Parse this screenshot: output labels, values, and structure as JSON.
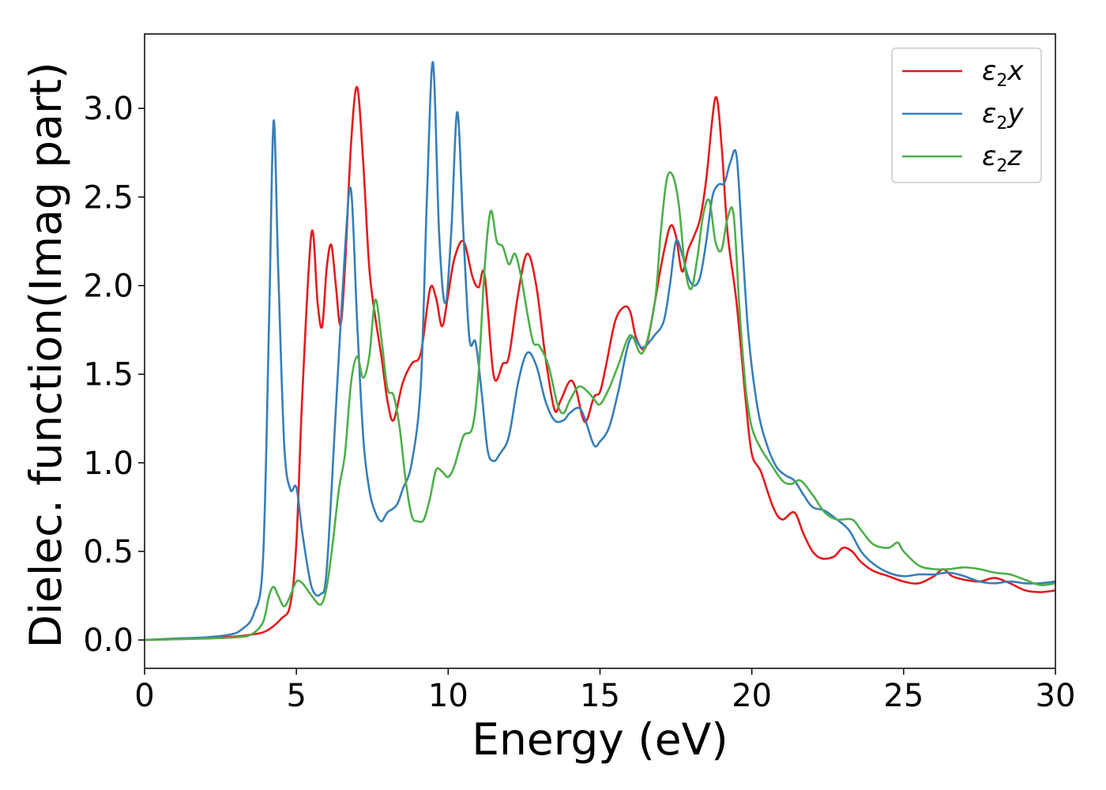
{
  "chart_data": {
    "type": "line",
    "xlabel": "Energy (eV)",
    "ylabel": "Dielec. function(Imag part)",
    "xlim": [
      0,
      30
    ],
    "ylim": [
      -0.16,
      3.42
    ],
    "xticks": [
      0,
      5,
      10,
      15,
      20,
      25,
      30
    ],
    "xtick_labels": [
      "0",
      "5",
      "10",
      "15",
      "20",
      "25",
      "30"
    ],
    "yticks": [
      0.0,
      0.5,
      1.0,
      1.5,
      2.0,
      2.5,
      3.0
    ],
    "ytick_labels": [
      "0.0",
      "0.5",
      "1.0",
      "1.5",
      "2.0",
      "2.5",
      "3.0"
    ],
    "grid": false,
    "legend_position": "top-right",
    "series": [
      {
        "name": "ε2x",
        "legend": {
          "symbol": "ε",
          "sub": "2",
          "suffix": "x"
        },
        "color": "#e41a1c",
        "x": [
          0,
          1,
          2,
          3,
          3.5,
          4.0,
          4.5,
          4.8,
          5.0,
          5.2,
          5.5,
          5.7,
          5.85,
          6.0,
          6.15,
          6.3,
          6.45,
          6.6,
          6.8,
          7.0,
          7.2,
          7.4,
          7.6,
          7.8,
          8.0,
          8.2,
          8.5,
          8.8,
          9.1,
          9.4,
          9.6,
          9.8,
          10.0,
          10.2,
          10.5,
          10.8,
          11.0,
          11.2,
          11.5,
          11.8,
          12.0,
          12.3,
          12.6,
          12.9,
          13.2,
          13.5,
          13.7,
          14.0,
          14.2,
          14.5,
          14.8,
          15.0,
          15.2,
          15.5,
          15.8,
          16.0,
          16.2,
          16.5,
          16.8,
          17.0,
          17.3,
          17.5,
          17.7,
          17.9,
          18.1,
          18.3,
          18.5,
          18.8,
          19.0,
          19.2,
          19.5,
          19.8,
          20.0,
          20.3,
          20.7,
          21.0,
          21.4,
          21.7,
          22.0,
          22.3,
          22.7,
          23.0,
          23.3,
          23.6,
          24.0,
          24.5,
          25.0,
          25.5,
          26.0,
          26.3,
          26.6,
          27.0,
          27.5,
          28.0,
          28.5,
          29.0,
          29.5,
          30.0
        ],
        "y": [
          0.0,
          0.005,
          0.01,
          0.02,
          0.03,
          0.05,
          0.12,
          0.2,
          0.55,
          1.4,
          2.3,
          1.9,
          1.77,
          2.1,
          2.23,
          2.0,
          1.78,
          2.1,
          2.8,
          3.12,
          2.7,
          2.1,
          1.82,
          1.6,
          1.35,
          1.24,
          1.45,
          1.56,
          1.62,
          1.98,
          1.93,
          1.77,
          1.95,
          2.15,
          2.25,
          2.05,
          1.99,
          2.06,
          1.49,
          1.56,
          1.6,
          1.95,
          2.18,
          2.0,
          1.6,
          1.3,
          1.35,
          1.46,
          1.42,
          1.23,
          1.37,
          1.4,
          1.55,
          1.8,
          1.88,
          1.85,
          1.7,
          1.65,
          1.9,
          2.1,
          2.33,
          2.28,
          2.08,
          2.2,
          2.28,
          2.38,
          2.6,
          3.06,
          2.8,
          2.3,
          1.9,
          1.35,
          1.05,
          0.95,
          0.75,
          0.68,
          0.72,
          0.6,
          0.5,
          0.46,
          0.47,
          0.52,
          0.5,
          0.44,
          0.39,
          0.36,
          0.33,
          0.32,
          0.36,
          0.4,
          0.36,
          0.34,
          0.33,
          0.35,
          0.32,
          0.28,
          0.27,
          0.28
        ]
      },
      {
        "name": "ε2y",
        "legend": {
          "symbol": "ε",
          "sub": "2",
          "suffix": "y"
        },
        "color": "#377eb8",
        "x": [
          0,
          1,
          2,
          2.8,
          3.2,
          3.6,
          3.9,
          4.1,
          4.25,
          4.4,
          4.6,
          4.8,
          5.0,
          5.2,
          5.5,
          5.8,
          6.0,
          6.3,
          6.6,
          6.8,
          7.0,
          7.2,
          7.4,
          7.6,
          7.8,
          8.0,
          8.3,
          8.5,
          8.8,
          9.1,
          9.3,
          9.5,
          9.7,
          9.9,
          10.1,
          10.3,
          10.5,
          10.7,
          10.9,
          11.1,
          11.3,
          11.5,
          11.7,
          12.0,
          12.3,
          12.6,
          12.9,
          13.2,
          13.5,
          13.8,
          14.0,
          14.3,
          14.5,
          14.8,
          15.0,
          15.3,
          15.6,
          16.0,
          16.4,
          16.8,
          17.1,
          17.3,
          17.5,
          17.7,
          17.9,
          18.1,
          18.3,
          18.5,
          18.7,
          18.9,
          19.1,
          19.3,
          19.5,
          19.7,
          19.9,
          20.2,
          20.5,
          20.8,
          21.1,
          21.4,
          21.7,
          22.0,
          22.4,
          22.8,
          23.2,
          23.6,
          24.0,
          24.5,
          25.0,
          25.5,
          26.0,
          26.5,
          27.0,
          27.5,
          28.0,
          28.5,
          29.0,
          29.5,
          30.0
        ],
        "y": [
          0.0,
          0.008,
          0.015,
          0.03,
          0.06,
          0.15,
          0.45,
          1.8,
          2.93,
          2.1,
          1.1,
          0.85,
          0.86,
          0.6,
          0.3,
          0.26,
          0.4,
          1.3,
          2.2,
          2.54,
          1.8,
          1.15,
          0.85,
          0.72,
          0.67,
          0.72,
          0.76,
          0.85,
          1.0,
          1.45,
          2.5,
          3.26,
          2.3,
          1.9,
          2.3,
          2.98,
          2.3,
          1.7,
          1.68,
          1.4,
          1.07,
          1.01,
          1.05,
          1.15,
          1.45,
          1.62,
          1.55,
          1.35,
          1.24,
          1.24,
          1.28,
          1.31,
          1.25,
          1.1,
          1.12,
          1.2,
          1.4,
          1.7,
          1.65,
          1.72,
          1.8,
          2.0,
          2.25,
          2.18,
          2.05,
          2.0,
          2.05,
          2.25,
          2.5,
          2.57,
          2.58,
          2.7,
          2.73,
          2.2,
          1.7,
          1.3,
          1.1,
          0.98,
          0.93,
          0.9,
          0.82,
          0.75,
          0.73,
          0.68,
          0.62,
          0.5,
          0.43,
          0.38,
          0.36,
          0.37,
          0.37,
          0.38,
          0.36,
          0.33,
          0.32,
          0.33,
          0.32,
          0.32,
          0.33
        ]
      },
      {
        "name": "ε2z",
        "legend": {
          "symbol": "ε",
          "sub": "2",
          "suffix": "z"
        },
        "color": "#4daf4a",
        "x": [
          0,
          1,
          2,
          3,
          3.5,
          3.9,
          4.1,
          4.25,
          4.4,
          4.6,
          4.8,
          5.0,
          5.2,
          5.5,
          5.8,
          6.0,
          6.2,
          6.4,
          6.6,
          6.8,
          7.0,
          7.2,
          7.4,
          7.6,
          7.8,
          8.0,
          8.2,
          8.4,
          8.6,
          8.8,
          9.0,
          9.2,
          9.4,
          9.6,
          9.8,
          10.0,
          10.2,
          10.5,
          10.8,
          11.0,
          11.2,
          11.4,
          11.6,
          11.8,
          12.0,
          12.2,
          12.4,
          12.6,
          12.8,
          13.0,
          13.3,
          13.6,
          13.8,
          14.0,
          14.3,
          14.6,
          14.8,
          15.0,
          15.3,
          15.6,
          16.0,
          16.4,
          16.8,
          17.0,
          17.2,
          17.4,
          17.6,
          17.8,
          18.0,
          18.2,
          18.4,
          18.6,
          18.8,
          19.0,
          19.2,
          19.4,
          19.6,
          19.8,
          20.0,
          20.3,
          20.6,
          21.0,
          21.3,
          21.6,
          22.0,
          22.4,
          22.8,
          23.3,
          23.6,
          24.0,
          24.5,
          24.8,
          25.0,
          25.5,
          26.0,
          26.5,
          27.0,
          27.5,
          28.0,
          28.5,
          29.0,
          29.5,
          30.0
        ],
        "y": [
          0.0,
          0.004,
          0.008,
          0.015,
          0.03,
          0.1,
          0.25,
          0.3,
          0.25,
          0.19,
          0.25,
          0.33,
          0.32,
          0.25,
          0.2,
          0.3,
          0.55,
          0.85,
          1.05,
          1.45,
          1.6,
          1.48,
          1.6,
          1.92,
          1.7,
          1.42,
          1.38,
          1.2,
          0.9,
          0.7,
          0.67,
          0.68,
          0.8,
          0.96,
          0.95,
          0.92,
          0.98,
          1.15,
          1.2,
          1.5,
          2.1,
          2.42,
          2.25,
          2.22,
          2.12,
          2.18,
          2.05,
          1.85,
          1.68,
          1.66,
          1.55,
          1.33,
          1.28,
          1.35,
          1.43,
          1.4,
          1.36,
          1.33,
          1.42,
          1.55,
          1.72,
          1.62,
          1.9,
          2.3,
          2.6,
          2.62,
          2.45,
          2.1,
          1.98,
          2.15,
          2.4,
          2.48,
          2.25,
          2.2,
          2.38,
          2.4,
          1.85,
          1.42,
          1.2,
          1.08,
          1.0,
          0.9,
          0.88,
          0.9,
          0.82,
          0.72,
          0.68,
          0.68,
          0.62,
          0.54,
          0.52,
          0.55,
          0.5,
          0.42,
          0.4,
          0.4,
          0.41,
          0.4,
          0.38,
          0.37,
          0.34,
          0.31,
          0.32
        ]
      }
    ]
  }
}
